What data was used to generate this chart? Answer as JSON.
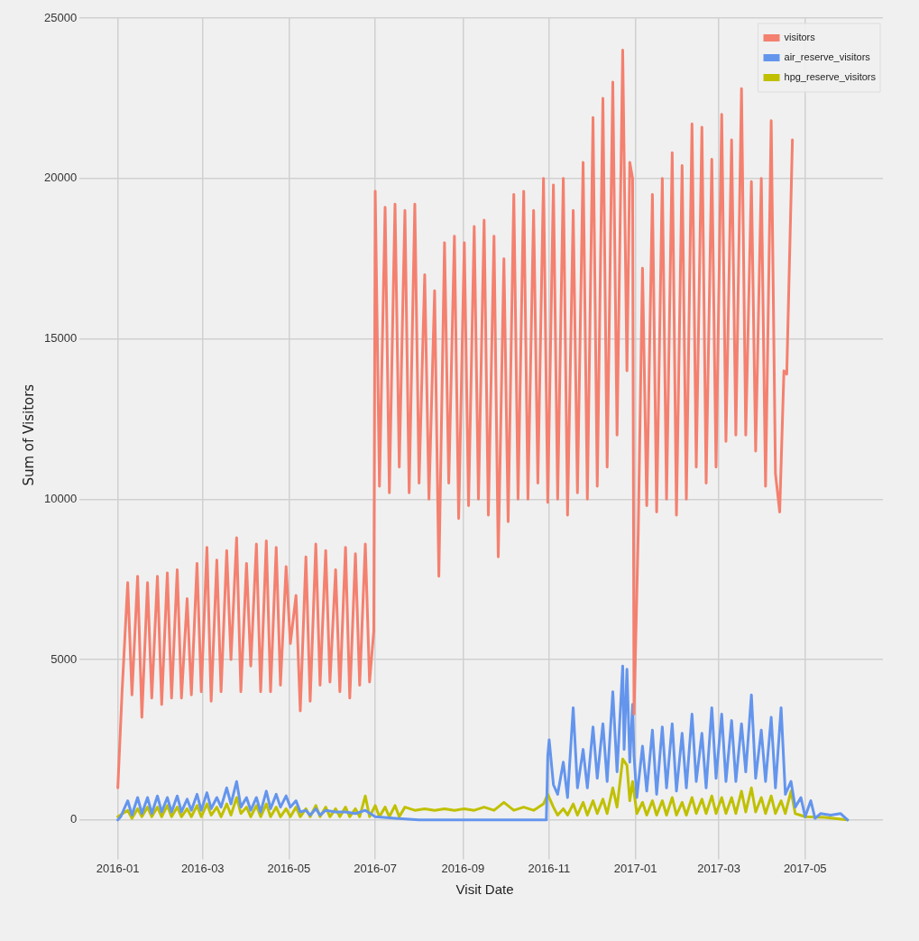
{
  "chart_data": {
    "type": "line",
    "xlabel": "Visit Date",
    "ylabel": "Sum of Visitors",
    "xlim": [
      "2015-12-10",
      "2017-06-25"
    ],
    "ylim": [
      -1000,
      25000
    ],
    "xticks": [
      {
        "value": "2016-01",
        "label": "2016-01"
      },
      {
        "value": "2016-03",
        "label": "2016-03"
      },
      {
        "value": "2016-05",
        "label": "2016-05"
      },
      {
        "value": "2016-07",
        "label": "2016-07"
      },
      {
        "value": "2016-09",
        "label": "2016-09"
      },
      {
        "value": "2016-11",
        "label": "2016-11"
      },
      {
        "value": "2017-01",
        "label": "2017-01"
      },
      {
        "value": "2017-03",
        "label": "2017-03"
      },
      {
        "value": "2017-05",
        "label": "2017-05"
      }
    ],
    "yticks": [
      0,
      5000,
      10000,
      15000,
      20000,
      25000
    ],
    "grid": true,
    "legend": "top right",
    "marker": "none",
    "line_style": "solid",
    "series": [
      {
        "name": "visitors",
        "color": "#f4806f",
        "x": [
          "2016-01-01",
          "2016-01-04",
          "2016-01-08",
          "2016-01-11",
          "2016-01-15",
          "2016-01-18",
          "2016-01-22",
          "2016-01-25",
          "2016-01-29",
          "2016-02-01",
          "2016-02-05",
          "2016-02-08",
          "2016-02-12",
          "2016-02-15",
          "2016-02-19",
          "2016-02-22",
          "2016-02-26",
          "2016-02-29",
          "2016-03-04",
          "2016-03-07",
          "2016-03-11",
          "2016-03-14",
          "2016-03-18",
          "2016-03-21",
          "2016-03-25",
          "2016-03-28",
          "2016-04-01",
          "2016-04-04",
          "2016-04-08",
          "2016-04-11",
          "2016-04-15",
          "2016-04-18",
          "2016-04-22",
          "2016-04-25",
          "2016-04-29",
          "2016-05-02",
          "2016-05-06",
          "2016-05-09",
          "2016-05-13",
          "2016-05-16",
          "2016-05-20",
          "2016-05-23",
          "2016-05-27",
          "2016-05-30",
          "2016-06-03",
          "2016-06-06",
          "2016-06-10",
          "2016-06-13",
          "2016-06-17",
          "2016-06-20",
          "2016-06-24",
          "2016-06-27",
          "2016-06-30",
          "2016-07-01",
          "2016-07-04",
          "2016-07-08",
          "2016-07-11",
          "2016-07-15",
          "2016-07-18",
          "2016-07-22",
          "2016-07-25",
          "2016-07-29",
          "2016-08-01",
          "2016-08-05",
          "2016-08-08",
          "2016-08-12",
          "2016-08-15",
          "2016-08-19",
          "2016-08-22",
          "2016-08-26",
          "2016-08-29",
          "2016-09-02",
          "2016-09-05",
          "2016-09-09",
          "2016-09-12",
          "2016-09-16",
          "2016-09-19",
          "2016-09-23",
          "2016-09-26",
          "2016-09-30",
          "2016-10-03",
          "2016-10-07",
          "2016-10-10",
          "2016-10-14",
          "2016-10-17",
          "2016-10-21",
          "2016-10-24",
          "2016-10-28",
          "2016-10-31",
          "2016-11-04",
          "2016-11-07",
          "2016-11-11",
          "2016-11-14",
          "2016-11-18",
          "2016-11-21",
          "2016-11-25",
          "2016-11-28",
          "2016-12-02",
          "2016-12-05",
          "2016-12-09",
          "2016-12-12",
          "2016-12-16",
          "2016-12-19",
          "2016-12-23",
          "2016-12-26",
          "2016-12-28",
          "2016-12-30",
          "2016-12-31",
          "2017-01-03",
          "2017-01-06",
          "2017-01-09",
          "2017-01-13",
          "2017-01-16",
          "2017-01-20",
          "2017-01-23",
          "2017-01-27",
          "2017-01-30",
          "2017-02-03",
          "2017-02-06",
          "2017-02-10",
          "2017-02-13",
          "2017-02-17",
          "2017-02-20",
          "2017-02-24",
          "2017-02-27",
          "2017-03-03",
          "2017-03-06",
          "2017-03-10",
          "2017-03-13",
          "2017-03-17",
          "2017-03-20",
          "2017-03-24",
          "2017-03-27",
          "2017-03-31",
          "2017-04-03",
          "2017-04-07",
          "2017-04-10",
          "2017-04-13",
          "2017-04-16",
          "2017-04-18",
          "2017-04-22"
        ],
        "values": [
          1000,
          4000,
          7400,
          3900,
          7600,
          3200,
          7400,
          3800,
          7600,
          3600,
          7700,
          3800,
          7800,
          3800,
          6900,
          3900,
          8000,
          4000,
          8500,
          3700,
          8100,
          4000,
          8400,
          5000,
          8800,
          4000,
          8000,
          4800,
          8600,
          4000,
          8700,
          4000,
          8500,
          4200,
          7900,
          5500,
          7000,
          3400,
          8200,
          3700,
          8600,
          4200,
          8400,
          4300,
          7800,
          4000,
          8500,
          3800,
          8300,
          4200,
          8600,
          4300,
          5900,
          19600,
          10400,
          19100,
          10200,
          19200,
          11000,
          19000,
          10200,
          19200,
          10500,
          17000,
          10000,
          16500,
          7600,
          18000,
          10500,
          18200,
          9400,
          18000,
          9800,
          18500,
          10000,
          18700,
          9500,
          18200,
          8200,
          17500,
          9300,
          19500,
          10000,
          19600,
          10000,
          19000,
          10500,
          20000,
          9900,
          19800,
          10000,
          20000,
          9500,
          19000,
          10200,
          20500,
          10000,
          21900,
          10400,
          22500,
          11000,
          23000,
          12000,
          24000,
          14000,
          20500,
          20000,
          3300,
          9000,
          17200,
          9800,
          19500,
          9600,
          20000,
          10000,
          20800,
          9500,
          20400,
          10000,
          21700,
          11000,
          21600,
          10500,
          20600,
          11000,
          22000,
          11800,
          21200,
          12000,
          22800,
          12000,
          19900,
          11500,
          20000,
          10400,
          21800,
          10800,
          9600,
          14000,
          13900,
          21200
        ]
      },
      {
        "name": "air_reserve_visitors",
        "color": "#6495ed",
        "x": [
          "2016-01-01",
          "2016-01-03",
          "2016-01-08",
          "2016-01-11",
          "2016-01-15",
          "2016-01-18",
          "2016-01-22",
          "2016-01-25",
          "2016-01-29",
          "2016-02-01",
          "2016-02-05",
          "2016-02-08",
          "2016-02-12",
          "2016-02-15",
          "2016-02-19",
          "2016-02-22",
          "2016-02-26",
          "2016-02-29",
          "2016-03-04",
          "2016-03-07",
          "2016-03-11",
          "2016-03-14",
          "2016-03-18",
          "2016-03-21",
          "2016-03-25",
          "2016-03-28",
          "2016-04-01",
          "2016-04-04",
          "2016-04-08",
          "2016-04-11",
          "2016-04-15",
          "2016-04-18",
          "2016-04-22",
          "2016-04-25",
          "2016-04-29",
          "2016-05-02",
          "2016-05-06",
          "2016-05-09",
          "2016-05-13",
          "2016-05-16",
          "2016-05-20",
          "2016-05-23",
          "2016-05-27",
          "2016-06-03",
          "2016-06-10",
          "2016-06-17",
          "2016-06-24",
          "2016-07-01",
          "2016-07-15",
          "2016-08-01",
          "2016-10-30",
          "2016-10-31",
          "2016-11-01",
          "2016-11-04",
          "2016-11-07",
          "2016-11-11",
          "2016-11-14",
          "2016-11-18",
          "2016-11-21",
          "2016-11-25",
          "2016-11-28",
          "2016-12-02",
          "2016-12-05",
          "2016-12-09",
          "2016-12-12",
          "2016-12-16",
          "2016-12-19",
          "2016-12-23",
          "2016-12-24",
          "2016-12-26",
          "2016-12-28",
          "2016-12-30",
          "2016-12-31",
          "2017-01-02",
          "2017-01-06",
          "2017-01-09",
          "2017-01-13",
          "2017-01-16",
          "2017-01-20",
          "2017-01-23",
          "2017-01-27",
          "2017-01-30",
          "2017-02-03",
          "2017-02-06",
          "2017-02-10",
          "2017-02-13",
          "2017-02-17",
          "2017-02-20",
          "2017-02-24",
          "2017-02-27",
          "2017-03-03",
          "2017-03-06",
          "2017-03-10",
          "2017-03-13",
          "2017-03-17",
          "2017-03-20",
          "2017-03-24",
          "2017-03-27",
          "2017-03-31",
          "2017-04-03",
          "2017-04-07",
          "2017-04-10",
          "2017-04-14",
          "2017-04-17",
          "2017-04-21",
          "2017-04-24",
          "2017-04-28",
          "2017-05-01",
          "2017-05-05",
          "2017-05-08",
          "2017-05-12",
          "2017-05-19",
          "2017-05-26",
          "2017-05-31"
        ],
        "values": [
          0,
          100,
          600,
          150,
          700,
          200,
          700,
          200,
          750,
          250,
          700,
          250,
          750,
          250,
          650,
          300,
          800,
          300,
          850,
          350,
          700,
          400,
          1000,
          500,
          1200,
          400,
          700,
          300,
          700,
          250,
          900,
          350,
          800,
          400,
          750,
          400,
          600,
          250,
          300,
          150,
          350,
          150,
          300,
          250,
          250,
          200,
          300,
          100,
          50,
          0,
          0,
          2000,
          2500,
          1100,
          800,
          1800,
          700,
          3500,
          1000,
          2200,
          1000,
          2900,
          1300,
          3000,
          1200,
          4000,
          1500,
          4800,
          2200,
          4700,
          1800,
          3600,
          2000,
          700,
          2300,
          900,
          2800,
          800,
          2900,
          1000,
          3000,
          900,
          2700,
          1000,
          3300,
          1200,
          2700,
          1000,
          3500,
          1300,
          3300,
          1200,
          3100,
          1200,
          3000,
          1500,
          3900,
          1300,
          2800,
          1200,
          3200,
          1000,
          3500,
          800,
          1200,
          400,
          700,
          100,
          600,
          50,
          200,
          150,
          200,
          0
        ]
      },
      {
        "name": "hpg_reserve_visitors",
        "color": "#c0c000",
        "x": [
          "2016-01-01",
          "2016-01-08",
          "2016-01-11",
          "2016-01-15",
          "2016-01-18",
          "2016-01-22",
          "2016-01-25",
          "2016-01-29",
          "2016-02-01",
          "2016-02-05",
          "2016-02-08",
          "2016-02-12",
          "2016-02-15",
          "2016-02-19",
          "2016-02-22",
          "2016-02-26",
          "2016-02-29",
          "2016-03-04",
          "2016-03-07",
          "2016-03-11",
          "2016-03-14",
          "2016-03-18",
          "2016-03-21",
          "2016-03-25",
          "2016-03-28",
          "2016-04-01",
          "2016-04-04",
          "2016-04-08",
          "2016-04-11",
          "2016-04-15",
          "2016-04-18",
          "2016-04-22",
          "2016-04-25",
          "2016-04-29",
          "2016-05-02",
          "2016-05-06",
          "2016-05-09",
          "2016-05-13",
          "2016-05-16",
          "2016-05-20",
          "2016-05-23",
          "2016-05-27",
          "2016-05-30",
          "2016-06-03",
          "2016-06-06",
          "2016-06-10",
          "2016-06-13",
          "2016-06-17",
          "2016-06-20",
          "2016-06-24",
          "2016-06-27",
          "2016-07-01",
          "2016-07-04",
          "2016-07-08",
          "2016-07-11",
          "2016-07-15",
          "2016-07-18",
          "2016-07-22",
          "2016-07-29",
          "2016-08-05",
          "2016-08-12",
          "2016-08-19",
          "2016-08-26",
          "2016-09-02",
          "2016-09-09",
          "2016-09-16",
          "2016-09-23",
          "2016-09-30",
          "2016-10-07",
          "2016-10-14",
          "2016-10-21",
          "2016-10-28",
          "2016-10-31",
          "2016-11-04",
          "2016-11-07",
          "2016-11-11",
          "2016-11-14",
          "2016-11-18",
          "2016-11-21",
          "2016-11-25",
          "2016-11-28",
          "2016-12-02",
          "2016-12-05",
          "2016-12-09",
          "2016-12-12",
          "2016-12-16",
          "2016-12-19",
          "2016-12-23",
          "2016-12-26",
          "2016-12-28",
          "2016-12-30",
          "2017-01-02",
          "2017-01-06",
          "2017-01-09",
          "2017-01-13",
          "2017-01-16",
          "2017-01-20",
          "2017-01-23",
          "2017-01-27",
          "2017-01-30",
          "2017-02-03",
          "2017-02-06",
          "2017-02-10",
          "2017-02-13",
          "2017-02-17",
          "2017-02-20",
          "2017-02-24",
          "2017-02-27",
          "2017-03-03",
          "2017-03-06",
          "2017-03-10",
          "2017-03-13",
          "2017-03-17",
          "2017-03-20",
          "2017-03-24",
          "2017-03-27",
          "2017-03-31",
          "2017-04-03",
          "2017-04-07",
          "2017-04-10",
          "2017-04-14",
          "2017-04-17",
          "2017-04-21",
          "2017-04-24",
          "2017-05-01",
          "2017-05-15",
          "2017-05-31"
        ],
        "values": [
          100,
          300,
          50,
          350,
          100,
          400,
          100,
          400,
          100,
          450,
          100,
          400,
          100,
          350,
          100,
          450,
          100,
          500,
          150,
          400,
          100,
          500,
          150,
          700,
          200,
          400,
          100,
          450,
          100,
          500,
          100,
          400,
          100,
          350,
          100,
          400,
          100,
          350,
          100,
          450,
          100,
          400,
          100,
          350,
          100,
          400,
          100,
          350,
          100,
          750,
          100,
          450,
          100,
          400,
          100,
          450,
          100,
          400,
          300,
          350,
          300,
          350,
          300,
          350,
          300,
          400,
          300,
          550,
          300,
          400,
          300,
          500,
          800,
          400,
          150,
          350,
          150,
          500,
          150,
          550,
          150,
          600,
          200,
          650,
          200,
          1000,
          400,
          1900,
          1700,
          600,
          1200,
          200,
          550,
          150,
          600,
          150,
          600,
          150,
          700,
          150,
          550,
          150,
          700,
          200,
          650,
          200,
          750,
          200,
          700,
          200,
          700,
          200,
          900,
          250,
          1000,
          250,
          700,
          200,
          750,
          200,
          600,
          200,
          900,
          200,
          100,
          80,
          0
        ]
      }
    ]
  }
}
